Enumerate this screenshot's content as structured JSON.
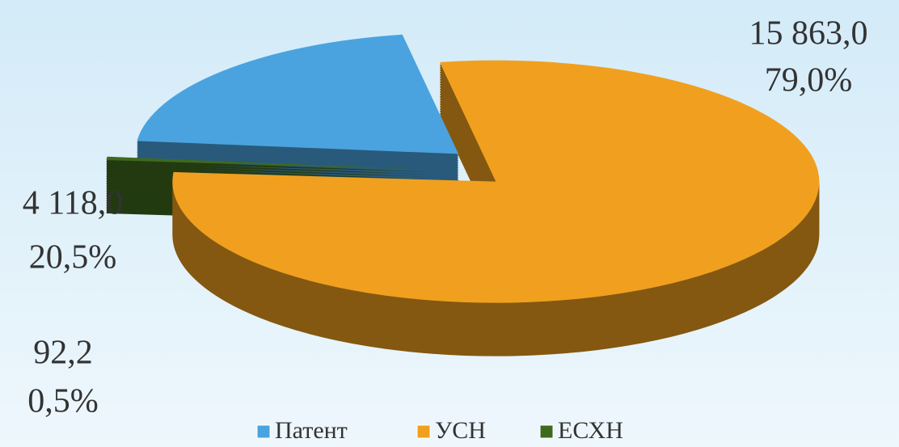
{
  "chart_data": {
    "type": "pie3d",
    "categories": [
      "Патент",
      "УСН",
      "ЕСХН"
    ],
    "values": [
      4118.0,
      15863.0,
      92.2
    ],
    "value_labels": [
      "4 118,0",
      "15 863,0",
      "92,2"
    ],
    "percents": [
      20.5,
      79.0,
      0.5
    ],
    "percent_labels": [
      "20,5%",
      "79,0%",
      "0,5%"
    ],
    "colors": [
      "#4aa3df",
      "#f0a01e",
      "#3f6a1e"
    ],
    "legend": "bottom"
  }
}
